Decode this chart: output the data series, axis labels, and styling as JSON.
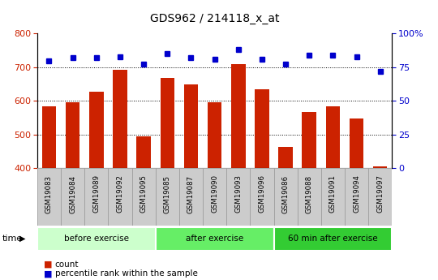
{
  "title": "GDS962 / 214118_x_at",
  "samples": [
    "GSM19083",
    "GSM19084",
    "GSM19089",
    "GSM19092",
    "GSM19095",
    "GSM19085",
    "GSM19087",
    "GSM19090",
    "GSM19093",
    "GSM19096",
    "GSM19086",
    "GSM19088",
    "GSM19091",
    "GSM19094",
    "GSM19097"
  ],
  "counts": [
    583,
    595,
    627,
    692,
    494,
    668,
    648,
    596,
    710,
    635,
    462,
    567,
    583,
    547,
    405
  ],
  "percentile_ranks": [
    80,
    82,
    82,
    83,
    77,
    85,
    82,
    81,
    88,
    81,
    77,
    84,
    84,
    83,
    72
  ],
  "ylim_left": [
    400,
    800
  ],
  "ylim_right": [
    0,
    100
  ],
  "yticks_left": [
    400,
    500,
    600,
    700,
    800
  ],
  "yticks_right": [
    0,
    25,
    50,
    75,
    100
  ],
  "bar_color": "#cc2200",
  "dot_color": "#0000cc",
  "groups": [
    {
      "label": "before exercise",
      "start": 0,
      "end": 5,
      "color": "#ccffcc"
    },
    {
      "label": "after exercise",
      "start": 5,
      "end": 10,
      "color": "#66ee66"
    },
    {
      "label": "60 min after exercise",
      "start": 10,
      "end": 15,
      "color": "#33cc33"
    }
  ],
  "tick_area_color": "#cccccc",
  "legend_count_label": "count",
  "legend_pct_label": "percentile rank within the sample"
}
